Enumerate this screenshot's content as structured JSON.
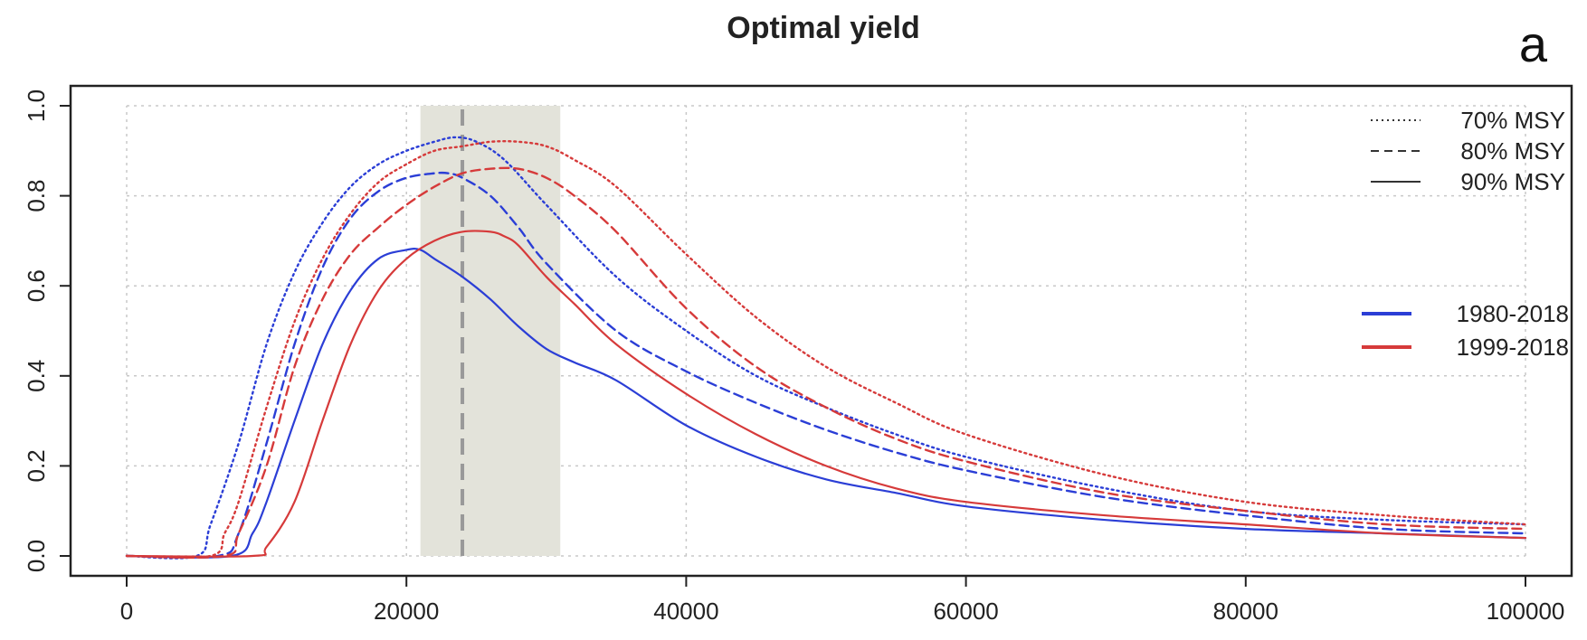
{
  "chart_data": {
    "type": "line",
    "title": "Optimal yield",
    "panel_label": "a",
    "xlabel": "",
    "ylabel": "",
    "xlim": [
      0,
      100000
    ],
    "ylim": [
      0,
      1.0
    ],
    "x_ticks": [
      0,
      20000,
      40000,
      60000,
      80000,
      100000
    ],
    "x_tick_labels": [
      "0",
      "20000",
      "40000",
      "60000",
      "80000",
      "100000"
    ],
    "y_ticks": [
      0,
      0.2,
      0.4,
      0.6,
      0.8,
      1.0
    ],
    "y_tick_labels": [
      "0.0",
      "0.2",
      "0.4",
      "0.6",
      "0.8",
      "1.0"
    ],
    "grid": true,
    "shaded_band": {
      "x_range": [
        21000,
        31000
      ],
      "y_range": [
        0,
        1.0
      ],
      "color": "#e3e3da"
    },
    "vline": {
      "x": 24000,
      "style": "dashed",
      "color": "#999999"
    },
    "colors": {
      "1980-2018": "#2b3ed6",
      "1999-2018": "#d63a3a"
    },
    "legend_linetype": {
      "position": "top-right",
      "entries": [
        {
          "label": "70% MSY",
          "style": "dotted"
        },
        {
          "label": "80% MSY",
          "style": "dashed"
        },
        {
          "label": "90% MSY",
          "style": "solid"
        }
      ]
    },
    "legend_period": {
      "position": "right",
      "entries": [
        {
          "label": "1980-2018",
          "color": "#2b3ed6"
        },
        {
          "label": "1999-2018",
          "color": "#d63a3a"
        }
      ]
    },
    "series": [
      {
        "period": "1980-2018",
        "level": "70% MSY",
        "style": "dotted",
        "x": [
          0,
          5000,
          6000,
          8000,
          10000,
          12000,
          14000,
          16000,
          18000,
          20000,
          22000,
          23500,
          25000,
          27000,
          30000,
          35000,
          40000,
          45000,
          50000,
          55000,
          60000,
          70000,
          80000,
          90000,
          100000
        ],
        "y": [
          0,
          0,
          0.07,
          0.25,
          0.47,
          0.63,
          0.74,
          0.82,
          0.87,
          0.9,
          0.92,
          0.93,
          0.92,
          0.88,
          0.78,
          0.62,
          0.5,
          0.4,
          0.33,
          0.27,
          0.22,
          0.15,
          0.1,
          0.08,
          0.07
        ]
      },
      {
        "period": "1980-2018",
        "level": "80% MSY",
        "style": "dashed",
        "x": [
          0,
          6500,
          8000,
          10000,
          12000,
          14000,
          16000,
          18000,
          20000,
          22000,
          23000,
          24000,
          26000,
          28000,
          30000,
          35000,
          40000,
          45000,
          50000,
          55000,
          60000,
          70000,
          80000,
          90000,
          100000
        ],
        "y": [
          0,
          0,
          0.05,
          0.25,
          0.47,
          0.64,
          0.75,
          0.81,
          0.84,
          0.85,
          0.85,
          0.84,
          0.8,
          0.73,
          0.65,
          0.5,
          0.41,
          0.34,
          0.28,
          0.23,
          0.19,
          0.13,
          0.09,
          0.06,
          0.05
        ]
      },
      {
        "period": "1980-2018",
        "level": "90% MSY",
        "style": "solid",
        "x": [
          0,
          7500,
          9000,
          10000,
          12000,
          14000,
          16000,
          18000,
          20000,
          21000,
          22000,
          24000,
          26000,
          28000,
          30000,
          32000,
          35000,
          40000,
          45000,
          50000,
          55000,
          60000,
          70000,
          80000,
          90000,
          100000
        ],
        "y": [
          0,
          0,
          0.05,
          0.12,
          0.3,
          0.47,
          0.59,
          0.66,
          0.68,
          0.68,
          0.66,
          0.62,
          0.57,
          0.51,
          0.46,
          0.43,
          0.39,
          0.29,
          0.22,
          0.17,
          0.14,
          0.11,
          0.08,
          0.06,
          0.05,
          0.04
        ]
      },
      {
        "period": "1999-2018",
        "level": "70% MSY",
        "style": "dotted",
        "x": [
          0,
          6000,
          7000,
          8000,
          10000,
          12000,
          14000,
          16000,
          18000,
          20000,
          22000,
          24000,
          26000,
          28000,
          30000,
          32000,
          35000,
          40000,
          45000,
          50000,
          55000,
          60000,
          70000,
          80000,
          90000,
          100000
        ],
        "y": [
          0,
          0,
          0.05,
          0.12,
          0.33,
          0.52,
          0.66,
          0.76,
          0.83,
          0.87,
          0.9,
          0.91,
          0.92,
          0.92,
          0.91,
          0.88,
          0.82,
          0.67,
          0.53,
          0.42,
          0.34,
          0.27,
          0.18,
          0.12,
          0.09,
          0.07
        ]
      },
      {
        "period": "1999-2018",
        "level": "80% MSY",
        "style": "dashed",
        "x": [
          0,
          7000,
          8000,
          10000,
          12000,
          14000,
          16000,
          18000,
          20000,
          22000,
          24000,
          26000,
          28000,
          30000,
          32000,
          35000,
          40000,
          45000,
          50000,
          55000,
          60000,
          70000,
          80000,
          90000,
          100000
        ],
        "y": [
          0,
          0,
          0.05,
          0.2,
          0.42,
          0.57,
          0.67,
          0.73,
          0.78,
          0.82,
          0.85,
          0.86,
          0.86,
          0.84,
          0.8,
          0.72,
          0.55,
          0.42,
          0.33,
          0.26,
          0.21,
          0.14,
          0.1,
          0.07,
          0.06
        ]
      },
      {
        "period": "1999-2018",
        "level": "90% MSY",
        "style": "solid",
        "x": [
          0,
          9000,
          10000,
          12000,
          14000,
          16000,
          18000,
          20000,
          22000,
          24000,
          26000,
          27000,
          28000,
          30000,
          32000,
          35000,
          40000,
          45000,
          50000,
          55000,
          60000,
          70000,
          80000,
          90000,
          100000
        ],
        "y": [
          0,
          0,
          0.02,
          0.12,
          0.3,
          0.47,
          0.59,
          0.66,
          0.7,
          0.72,
          0.72,
          0.71,
          0.69,
          0.62,
          0.56,
          0.47,
          0.36,
          0.27,
          0.2,
          0.15,
          0.12,
          0.09,
          0.07,
          0.05,
          0.04
        ]
      }
    ]
  }
}
